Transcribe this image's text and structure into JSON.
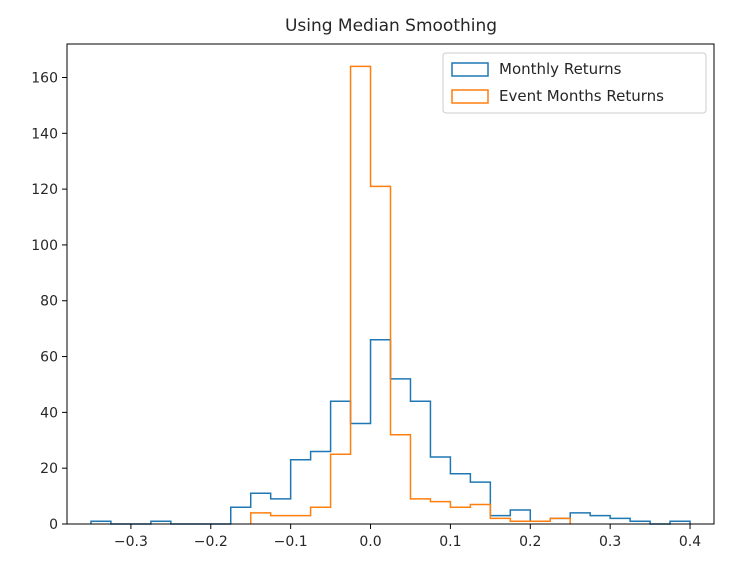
{
  "chart_data": {
    "type": "histogram-step",
    "title": "Using Median Smoothing",
    "xlabel": "",
    "ylabel": "",
    "xlim": [
      -0.38,
      0.43
    ],
    "ylim": [
      0,
      172
    ],
    "x_ticks": [
      -0.3,
      -0.2,
      -0.1,
      0.0,
      0.1,
      0.2,
      0.3,
      0.4
    ],
    "x_tick_labels": [
      "−0.3",
      "−0.2",
      "−0.1",
      "0.0",
      "0.1",
      "0.2",
      "0.3",
      "0.4"
    ],
    "y_ticks": [
      0,
      20,
      40,
      60,
      80,
      100,
      120,
      140,
      160
    ],
    "y_tick_labels": [
      "0",
      "20",
      "40",
      "60",
      "80",
      "100",
      "120",
      "140",
      "160"
    ],
    "grid": false,
    "legend_position": "top-right",
    "series": [
      {
        "name": "Monthly Returns",
        "color": "#1f77b4",
        "bin_edges": [
          -0.35,
          -0.325,
          -0.3,
          -0.275,
          -0.25,
          -0.225,
          -0.2,
          -0.175,
          -0.15,
          -0.125,
          -0.1,
          -0.075,
          -0.05,
          -0.025,
          0.0,
          0.025,
          0.05,
          0.075,
          0.1,
          0.125,
          0.15,
          0.175,
          0.2,
          0.225,
          0.25,
          0.275,
          0.3,
          0.325,
          0.35,
          0.375,
          0.4
        ],
        "counts": [
          1,
          0,
          0,
          1,
          0,
          0,
          0,
          6,
          11,
          9,
          23,
          26,
          44,
          36,
          66,
          52,
          44,
          24,
          18,
          15,
          3,
          5,
          1,
          2,
          4,
          3,
          2,
          1,
          0,
          1
        ]
      },
      {
        "name": "Event Months Returns",
        "color": "#ff7f0e",
        "bin_edges": [
          -0.15,
          -0.125,
          -0.1,
          -0.075,
          -0.05,
          -0.025,
          0.0,
          0.025,
          0.05,
          0.075,
          0.1,
          0.125,
          0.15,
          0.175,
          0.2,
          0.225,
          0.25
        ],
        "counts": [
          4,
          3,
          3,
          6,
          25,
          164,
          121,
          32,
          9,
          8,
          6,
          7,
          2,
          1,
          1,
          2
        ]
      }
    ]
  }
}
